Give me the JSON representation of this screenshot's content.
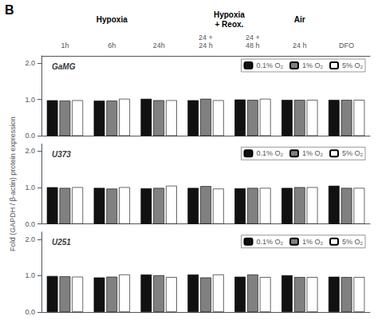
{
  "chart_data": [
    {
      "type": "bar",
      "title": "GaMG",
      "categories": [
        "1h",
        "6h",
        "24h",
        "24 +\n24 h",
        "24 +\n48 h",
        "24 h",
        "DFO"
      ],
      "series": [
        {
          "name": "0.1% O₂",
          "color": "#111111",
          "values": [
            0.98,
            0.97,
            1.02,
            0.98,
            1.0,
            0.99,
            0.99
          ]
        },
        {
          "name": "1% O₂",
          "color": "#808080",
          "values": [
            0.97,
            0.97,
            0.98,
            1.02,
            0.99,
            0.99,
            0.99
          ]
        },
        {
          "name": "5% O₂",
          "color": "#ffffff",
          "values": [
            0.98,
            1.02,
            0.98,
            0.98,
            1.02,
            0.99,
            0.99
          ]
        }
      ],
      "ylim": [
        0.0,
        2.2
      ],
      "yticks": [
        {
          "value": 0,
          "label": "0.0"
        },
        {
          "value": 1,
          "label": "1.0"
        },
        {
          "value": 2,
          "label": "2.0"
        }
      ],
      "grid": false,
      "legend": "upper right",
      "annotations": [
        "B",
        "Hypoxia",
        "Hypoxia\n+ Reox.",
        "Air"
      ]
    },
    {
      "type": "bar",
      "title": "U373",
      "categories": [
        "1h",
        "6h",
        "24h",
        "24 +\n24 h",
        "24 +\n48 h",
        "24 h",
        "DFO"
      ],
      "series": [
        {
          "name": "0.1% O₂",
          "color": "#111111",
          "values": [
            1.01,
            0.99,
            0.98,
            0.99,
            0.98,
            0.99,
            1.05
          ]
        },
        {
          "name": "1% O₂",
          "color": "#808080",
          "values": [
            0.99,
            0.97,
            0.99,
            1.04,
            0.99,
            1.01,
            0.99
          ]
        },
        {
          "name": "5% O₂",
          "color": "#ffffff",
          "values": [
            1.01,
            1.01,
            1.05,
            0.97,
            0.99,
            1.01,
            0.99
          ]
        }
      ],
      "ylabel": "Fold (GAPDH / β-actin) protein expression",
      "ylim": [
        0.0,
        2.2
      ],
      "yticks": [
        {
          "value": 0,
          "label": "0.0"
        },
        {
          "value": 1,
          "label": "1.0"
        },
        {
          "value": 2,
          "label": "2.0"
        }
      ],
      "grid": false,
      "legend": "upper right",
      "tick_labels": "y"
    },
    {
      "type": "bar",
      "title": "U251",
      "categories": [
        "1h",
        "6h",
        "24h",
        "24 +\n24 h",
        "24 +\n48 h",
        "24 h",
        "DFO"
      ],
      "series": [
        {
          "name": "0.1% O₂",
          "color": "#111111",
          "values": [
            0.99,
            0.95,
            1.03,
            1.03,
            0.97,
            1.01,
            0.97
          ]
        },
        {
          "name": "1% O₂",
          "color": "#808080",
          "values": [
            0.98,
            0.97,
            1.01,
            0.95,
            1.03,
            0.96,
            0.96
          ]
        },
        {
          "name": "5% O₂",
          "color": "#ffffff",
          "values": [
            0.97,
            1.03,
            0.96,
            1.03,
            0.96,
            0.96,
            0.96
          ]
        }
      ],
      "ylim": [
        0.0,
        2.2
      ],
      "yticks": [
        {
          "value": 0,
          "label": "0.0"
        },
        {
          "value": 1,
          "label": "1.0"
        },
        {
          "value": 2,
          "label": "2.0"
        }
      ],
      "grid": false,
      "legend": "upper right",
      "tick_labels": "y"
    }
  ]
}
